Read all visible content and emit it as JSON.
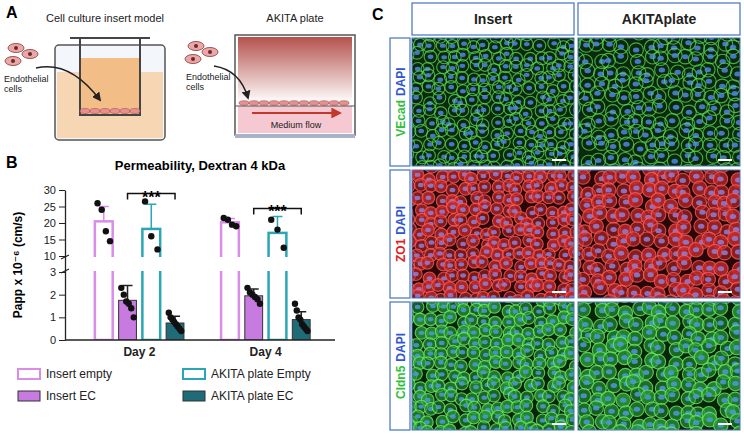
{
  "panel_a": {
    "letter": "A",
    "insert_title": "Cell culture insert model",
    "insert_cells": "Endothelial cells",
    "akita_title": "AKITA plate",
    "akita_cells": "Endothelial cells",
    "flow": "Medium flow"
  },
  "panel_b": {
    "letter": "B"
  },
  "chart_data": {
    "type": "bar",
    "title": "Permeability, Dextran 4 kDa",
    "y_label": "Papp x 10⁻⁶ (cm/s)",
    "categories": [
      "Day 2",
      "Day 4"
    ],
    "series": [
      {
        "name": "Insert empty",
        "color": "#d98ce8",
        "values": [
          20.5,
          20.2
        ],
        "errors": [
          4.5,
          1.2
        ],
        "points": [
          [
            26,
            24,
            17.5,
            14.5
          ],
          [
            21.5,
            21,
            19.5,
            19
          ]
        ]
      },
      {
        "name": "Insert EC",
        "color": "#c77ae0",
        "values": [
          1.75,
          1.95
        ],
        "errors": [
          0.65,
          0.3
        ],
        "points": [
          [
            2.3,
            2.0,
            1.7,
            1.6,
            1.4,
            1.0
          ],
          [
            2.3,
            2.1,
            2.0,
            1.9,
            1.8,
            1.6
          ]
        ]
      },
      {
        "name": "AKITA plate Empty",
        "color": "#2aa6b6",
        "values": [
          18.2,
          17
        ],
        "errors": [
          7.5,
          5
        ],
        "points": [
          [
            26.5,
            16,
            12
          ],
          [
            21,
            18,
            12.5
          ]
        ]
      },
      {
        "name": "AKITA plate EC",
        "color": "#1f6b78",
        "values": [
          0.75,
          0.9
        ],
        "errors": [
          0.3,
          0.35
        ],
        "points": [
          [
            1.2,
            1.0,
            0.9,
            0.8,
            0.7,
            0.6,
            0.5,
            0.4
          ],
          [
            1.6,
            1.3,
            1.0,
            0.9,
            0.7,
            0.6,
            0.5,
            0.4
          ]
        ]
      }
    ],
    "ylim": [
      0,
      30
    ],
    "yticks": [
      0,
      1,
      2,
      3,
      10,
      15,
      20,
      25,
      30
    ],
    "legend": "bottom",
    "annotations": [
      {
        "text": "***",
        "category": "Day 2",
        "between": [
          "Insert EC",
          "AKITA plate EC"
        ]
      },
      {
        "text": "***",
        "category": "Day 4",
        "between": [
          "Insert EC",
          "AKITA plate EC"
        ]
      }
    ]
  },
  "panel_c": {
    "letter": "C",
    "columns": [
      "Insert",
      "AKITAplate"
    ],
    "rows": [
      {
        "protein": "VEcad",
        "stain": "DAPI",
        "color": "#2fbf3a"
      },
      {
        "protein": "ZO1",
        "stain": "DAPI",
        "color": "#e02020"
      },
      {
        "protein": "Cldn5",
        "stain": "DAPI",
        "color": "#2fbf3a"
      }
    ]
  }
}
